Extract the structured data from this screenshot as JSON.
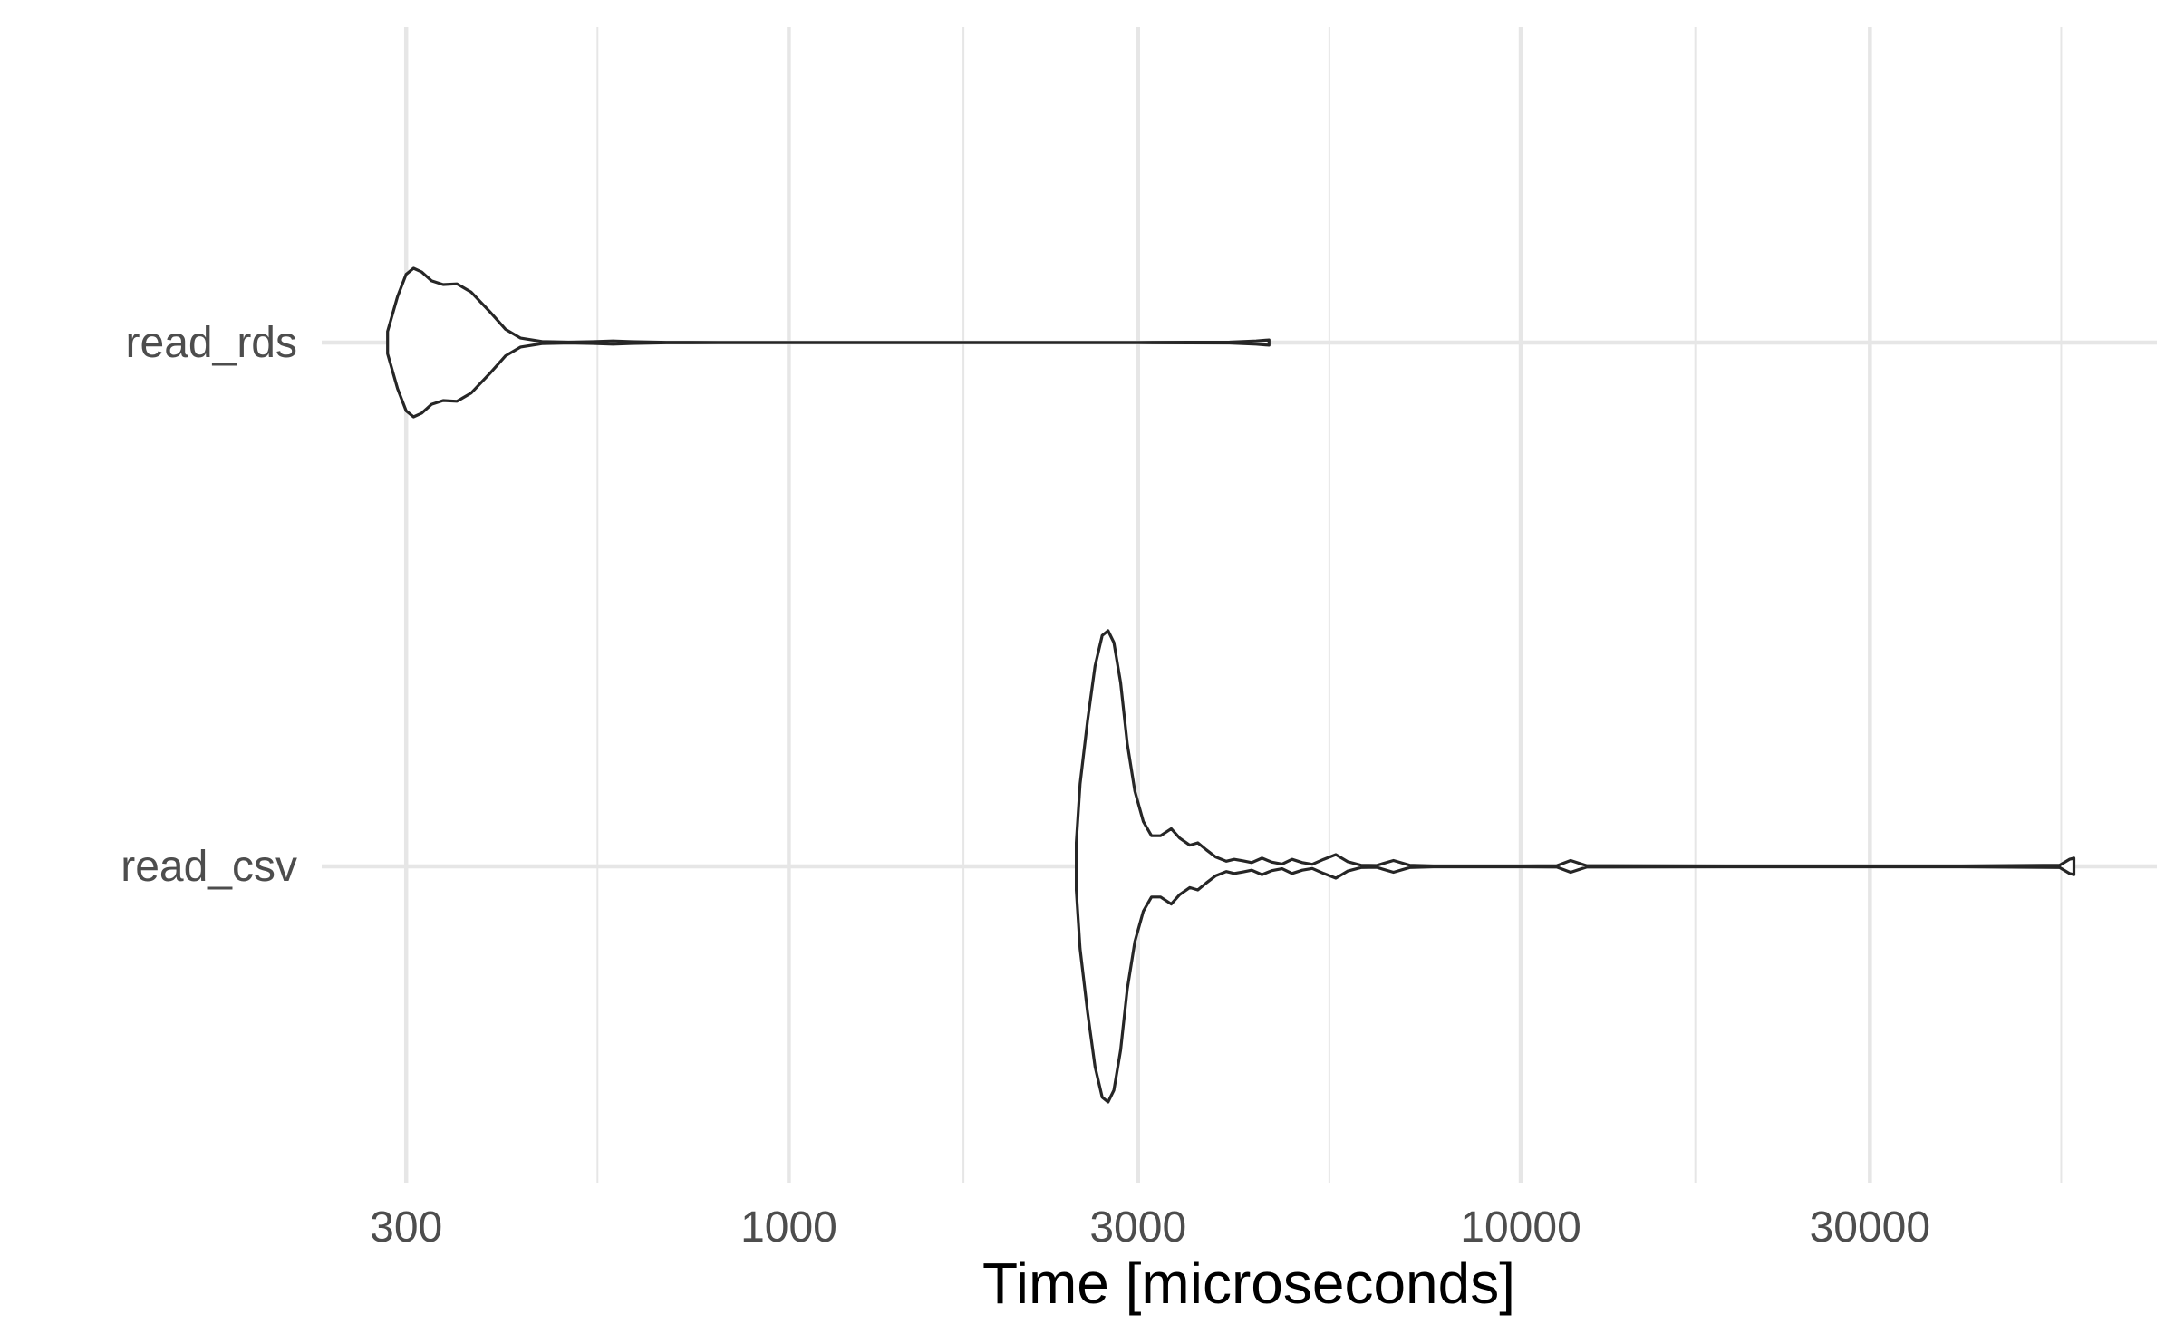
{
  "chart_data": {
    "type": "violin",
    "orientation": "horizontal",
    "title": "",
    "xlabel": "Time [microseconds]",
    "ylabel": "",
    "x_scale": "log10",
    "x_ticks": [
      300,
      1000,
      3000,
      10000,
      30000
    ],
    "x_tick_labels": [
      "300",
      "1000",
      "3000",
      "10000",
      "30000"
    ],
    "x_minor_gridlines": [
      547.7,
      1732,
      5477,
      17320,
      54770
    ],
    "xlim": [
      230,
      74000
    ],
    "grid": true,
    "legend": "none",
    "line_color": "#262626",
    "grid_color": "#e6e6e6",
    "categories": [
      "read_rds",
      "read_csv"
    ],
    "series": [
      {
        "name": "read_rds",
        "range": [
          283,
          4530
        ],
        "density": [
          [
            283,
            0.15
          ],
          [
            292,
            0.62
          ],
          [
            300,
            0.92
          ],
          [
            307,
            1.0
          ],
          [
            315,
            0.95
          ],
          [
            325,
            0.83
          ],
          [
            337,
            0.78
          ],
          [
            352,
            0.79
          ],
          [
            368,
            0.68
          ],
          [
            390,
            0.42
          ],
          [
            410,
            0.18
          ],
          [
            430,
            0.06
          ],
          [
            460,
            0.015
          ],
          [
            500,
            0.006
          ],
          [
            540,
            0.012
          ],
          [
            575,
            0.022
          ],
          [
            610,
            0.012
          ],
          [
            680,
            0.004
          ],
          [
            800,
            0.003
          ],
          [
            1500,
            0.003
          ],
          [
            3000,
            0.003
          ],
          [
            4000,
            0.006
          ],
          [
            4350,
            0.022
          ],
          [
            4530,
            0.035
          ]
        ]
      },
      {
        "name": "read_csv",
        "range": [
          2470,
          57000
        ],
        "density": [
          [
            2470,
            0.1
          ],
          [
            2500,
            0.35
          ],
          [
            2560,
            0.62
          ],
          [
            2620,
            0.85
          ],
          [
            2680,
            0.98
          ],
          [
            2730,
            1.0
          ],
          [
            2780,
            0.95
          ],
          [
            2840,
            0.78
          ],
          [
            2900,
            0.52
          ],
          [
            2970,
            0.32
          ],
          [
            3050,
            0.19
          ],
          [
            3130,
            0.13
          ],
          [
            3220,
            0.13
          ],
          [
            3330,
            0.16
          ],
          [
            3420,
            0.12
          ],
          [
            3530,
            0.09
          ],
          [
            3620,
            0.1
          ],
          [
            3720,
            0.07
          ],
          [
            3830,
            0.04
          ],
          [
            3960,
            0.022
          ],
          [
            4060,
            0.03
          ],
          [
            4170,
            0.024
          ],
          [
            4290,
            0.016
          ],
          [
            4430,
            0.035
          ],
          [
            4570,
            0.018
          ],
          [
            4720,
            0.01
          ],
          [
            4870,
            0.03
          ],
          [
            5030,
            0.016
          ],
          [
            5190,
            0.009
          ],
          [
            5380,
            0.03
          ],
          [
            5590,
            0.05
          ],
          [
            5800,
            0.02
          ],
          [
            6050,
            0.005
          ],
          [
            6350,
            0.004
          ],
          [
            6700,
            0.025
          ],
          [
            7050,
            0.005
          ],
          [
            7600,
            0.002
          ],
          [
            10000,
            0.002
          ],
          [
            11200,
            0.003
          ],
          [
            11700,
            0.025
          ],
          [
            12300,
            0.003
          ],
          [
            20000,
            0.002
          ],
          [
            40000,
            0.002
          ],
          [
            54500,
            0.005
          ],
          [
            56200,
            0.03
          ],
          [
            57000,
            0.035
          ]
        ]
      }
    ]
  }
}
